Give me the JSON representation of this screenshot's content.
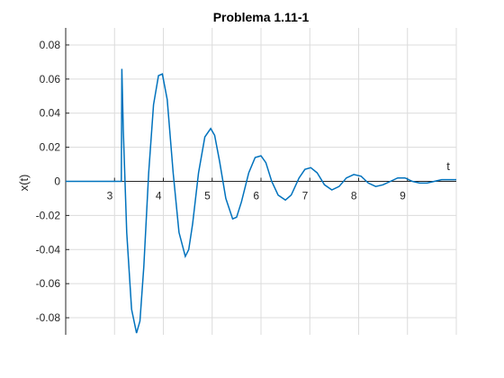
{
  "chart_data": {
    "type": "line",
    "title": "Problema 1.11-1",
    "xlabel": "t",
    "ylabel": "x(t)",
    "xlim": [
      2.0,
      10.0
    ],
    "ylim": [
      -0.09,
      0.09
    ],
    "grid": true,
    "x_ticks": [
      3,
      4,
      5,
      6,
      7,
      8,
      9
    ],
    "y_ticks": [
      0.08,
      0.06,
      0.04,
      0.02,
      0,
      -0.02,
      -0.04,
      -0.06,
      -0.08
    ],
    "y_tick_labels": [
      "0.08",
      "0.06",
      "0.04",
      "0.02",
      "0",
      "-0.02",
      "-0.04",
      "-0.06",
      "-0.08"
    ],
    "line_color": "#0072bd",
    "series": [
      {
        "x": [
          2.0,
          3.1,
          3.14,
          3.15,
          3.18,
          3.25,
          3.35,
          3.45,
          3.52,
          3.6,
          3.7,
          3.8,
          3.9,
          3.98,
          4.08,
          4.2,
          4.32,
          4.45,
          4.52,
          4.6,
          4.72,
          4.85,
          4.97,
          5.05,
          5.15,
          5.28,
          5.42,
          5.5,
          5.6,
          5.75,
          5.88,
          6.0,
          6.1,
          6.22,
          6.35,
          6.5,
          6.62,
          6.78,
          6.9,
          7.02,
          7.15,
          7.3,
          7.45,
          7.6,
          7.75,
          7.9,
          8.05,
          8.2,
          8.35,
          8.5,
          8.65,
          8.8,
          8.95,
          9.1,
          9.25,
          9.4,
          9.55,
          9.7,
          9.85,
          10.0
        ],
        "y": [
          0,
          0,
          0,
          0.066,
          0.03,
          -0.03,
          -0.075,
          -0.089,
          -0.082,
          -0.05,
          0.005,
          0.045,
          0.062,
          0.063,
          0.048,
          0.005,
          -0.03,
          -0.044,
          -0.04,
          -0.025,
          0.005,
          0.026,
          0.031,
          0.027,
          0.012,
          -0.01,
          -0.022,
          -0.021,
          -0.012,
          0.005,
          0.014,
          0.015,
          0.011,
          0.0,
          -0.008,
          -0.011,
          -0.008,
          0.002,
          0.007,
          0.008,
          0.005,
          -0.002,
          -0.005,
          -0.003,
          0.002,
          0.004,
          0.003,
          -0.001,
          -0.003,
          -0.002,
          0.0,
          0.002,
          0.002,
          0.0,
          -0.001,
          -0.001,
          0.0,
          0.001,
          0.001,
          0.001
        ]
      }
    ]
  }
}
